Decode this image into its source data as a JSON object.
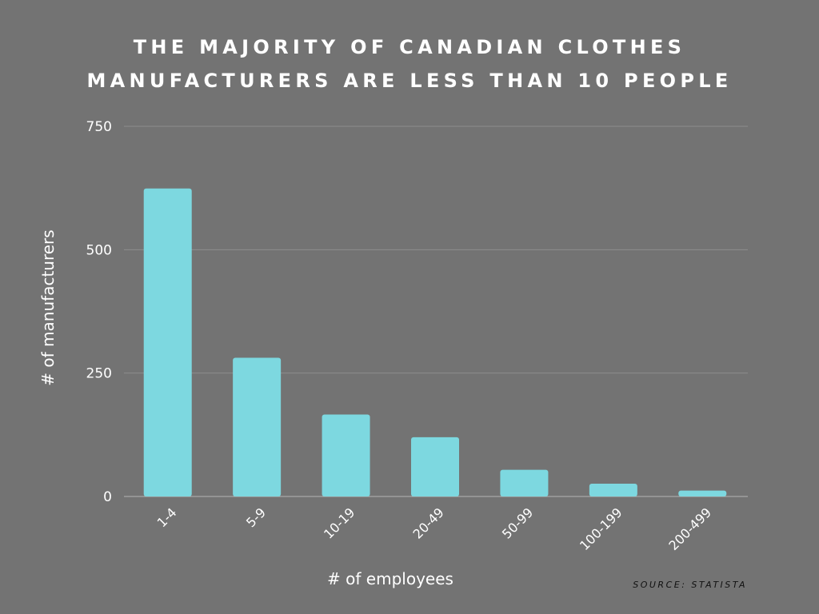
{
  "title_lines": [
    "THE MAJORITY OF CANADIAN CLOTHES",
    "MANUFACTURERS ARE LESS THAN 10 PEOPLE"
  ],
  "source": "SOURCE: STATISTA",
  "colors": {
    "background": "#737373",
    "bar": "#7dd8e0",
    "grid": "#8e8e8e",
    "text": "#ffffff"
  },
  "chart_data": {
    "type": "bar",
    "title": "THE MAJORITY OF CANADIAN CLOTHES MANUFACTURERS ARE LESS THAN 10 PEOPLE",
    "categories": [
      "1-4",
      "5-9",
      "10-19",
      "20-49",
      "50-99",
      "100-199",
      "200-499"
    ],
    "values": [
      624,
      281,
      166,
      120,
      54,
      26,
      12
    ],
    "xlabel": "# of employees",
    "ylabel": "# of manufacturers",
    "ylim": [
      0,
      750
    ],
    "yticks": [
      "0",
      "250",
      "500",
      "750"
    ],
    "grid": true,
    "legend": "none"
  }
}
